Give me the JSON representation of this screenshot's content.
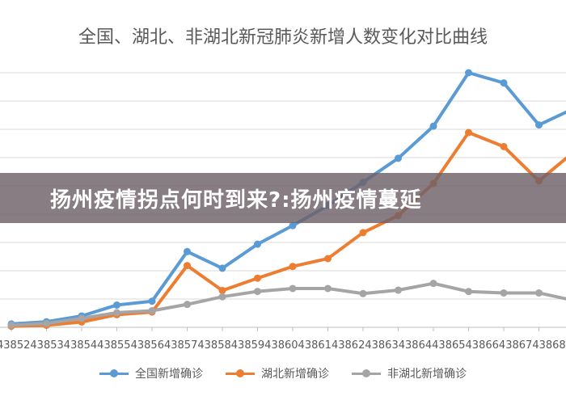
{
  "chart_data": {
    "type": "line",
    "title": "全国、湖北、非湖北新冠肺炎新增人数变化对比曲线",
    "categories": [
      "43852",
      "43853",
      "43854",
      "43855",
      "43856",
      "43857",
      "43858",
      "43859",
      "43860",
      "43861",
      "43862",
      "43863",
      "43864",
      "43865",
      "43866",
      "43867",
      "43868"
    ],
    "visible_tick_labels": [
      "438524385",
      "3438544385",
      "5438564385",
      "7438584385",
      "9438604386",
      "1438624386",
      "3438644386",
      "5438664386",
      "7438684"
    ],
    "series": [
      {
        "name": "全国新增确诊",
        "color": "#5b9bd5",
        "values": [
          260,
          440,
          890,
          1750,
          2050,
          5950,
          4640,
          6530,
          7990,
          9560,
          11400,
          13280,
          15800,
          20000,
          19200,
          15900,
          17200
        ]
      },
      {
        "name": "湖北新增确诊",
        "color": "#ed7d31",
        "values": [
          80,
          160,
          420,
          990,
          1200,
          4850,
          2890,
          3860,
          4780,
          5400,
          7440,
          8780,
          11300,
          15300,
          14200,
          11500,
          13800
        ]
      },
      {
        "name": "非湖北新增确诊",
        "color": "#a5a5a5",
        "values": [
          170,
          300,
          700,
          1150,
          1300,
          1800,
          2400,
          2820,
          3050,
          3050,
          2650,
          2920,
          3450,
          2810,
          2700,
          2700,
          2100
        ]
      }
    ],
    "ylim": [
      0,
      20000
    ],
    "grid": true,
    "legend": "bottom"
  },
  "banner": {
    "text": "扬州疫情拐点何时到来?:扬州疫情蔓延"
  }
}
